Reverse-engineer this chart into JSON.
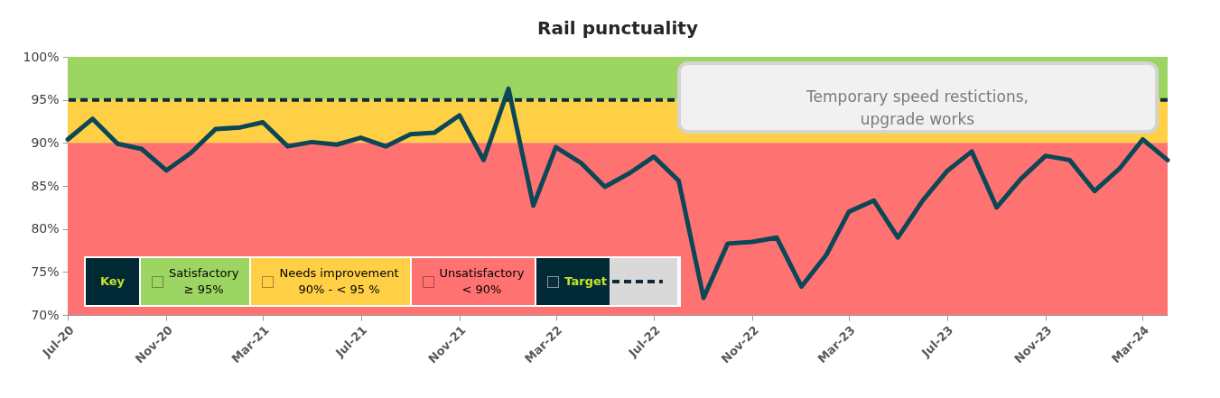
{
  "chart_data": {
    "type": "line",
    "title": "Rail punctuality",
    "x": [
      "2020-07",
      "2020-08",
      "2020-09",
      "2020-10",
      "2020-11",
      "2020-12",
      "2021-01",
      "2021-02",
      "2021-03",
      "2021-04",
      "2021-05",
      "2021-06",
      "2021-07",
      "2021-08",
      "2021-09",
      "2021-10",
      "2021-11",
      "2021-12",
      "2022-01",
      "2022-02",
      "2022-03",
      "2022-04",
      "2022-05",
      "2022-06",
      "2022-07",
      "2022-08",
      "2022-09",
      "2022-10",
      "2022-11",
      "2022-12",
      "2023-01",
      "2023-02",
      "2023-03",
      "2023-04",
      "2023-05",
      "2023-06",
      "2023-07",
      "2023-08",
      "2023-09",
      "2023-10",
      "2023-11",
      "2023-12",
      "2024-01",
      "2024-02",
      "2024-03",
      "2024-04"
    ],
    "series": [
      {
        "color": "#0b4756",
        "values": [
          90.4,
          92.8,
          89.9,
          89.3,
          86.8,
          88.8,
          91.6,
          91.8,
          92.4,
          89.6,
          90.1,
          89.8,
          90.6,
          89.6,
          91.0,
          91.2,
          93.2,
          88.0,
          96.3,
          82.7,
          89.5,
          87.7,
          84.9,
          86.5,
          88.4,
          85.6,
          72.0,
          78.3,
          78.5,
          79.0,
          73.3,
          77.0,
          82.0,
          83.3,
          79.0,
          83.3,
          86.7,
          89.0,
          82.5,
          85.8,
          88.5,
          88.0,
          84.4,
          87.0,
          90.4,
          88.0
        ]
      }
    ],
    "xlim": [
      "2020-07",
      "2024-04"
    ],
    "xticks": [
      {
        "value": "2020-07",
        "label": "Jul-20"
      },
      {
        "value": "2020-11",
        "label": "Nov-20"
      },
      {
        "value": "2021-03",
        "label": "Mar-21"
      },
      {
        "value": "2021-07",
        "label": "Jul-21"
      },
      {
        "value": "2021-11",
        "label": "Nov-21"
      },
      {
        "value": "2022-03",
        "label": "Mar-22"
      },
      {
        "value": "2022-07",
        "label": "Jul-22"
      },
      {
        "value": "2022-11",
        "label": "Nov-22"
      },
      {
        "value": "2023-03",
        "label": "Mar-23"
      },
      {
        "value": "2023-07",
        "label": "Jul-23"
      },
      {
        "value": "2023-11",
        "label": "Nov-23"
      },
      {
        "value": "2024-03",
        "label": "Mar-24"
      }
    ],
    "ylim": [
      70,
      100
    ],
    "yticks": [
      {
        "value": 70,
        "label": "70%"
      },
      {
        "value": 75,
        "label": "75%"
      },
      {
        "value": 80,
        "label": "80%"
      },
      {
        "value": 85,
        "label": "85%"
      },
      {
        "value": 90,
        "label": "90%"
      },
      {
        "value": 95,
        "label": "95%"
      },
      {
        "value": 100,
        "label": "100%"
      }
    ],
    "bands": [
      {
        "axis": "y",
        "from": 95,
        "to": 100,
        "label": "Satisfactory ≥ 95%",
        "color": "#9cd562"
      },
      {
        "axis": "y",
        "from": 90,
        "to": 95,
        "label": "Needs improvement 90% - < 95 %",
        "color": "#ffcf45"
      },
      {
        "axis": "y",
        "from": 70,
        "to": 90,
        "label": "Unsatisfactory < 90%",
        "color": "#ff7272"
      }
    ],
    "ref_lines": [
      {
        "axis": "y",
        "value": 95,
        "label": "Target",
        "color": "#0d2b3a",
        "line_style": "dashed"
      }
    ],
    "legend_title": "Key",
    "legend": "bottom left",
    "line_style": "solid",
    "grid": false,
    "annotations": [
      "Temporary speed restictions, upgrade works"
    ]
  }
}
